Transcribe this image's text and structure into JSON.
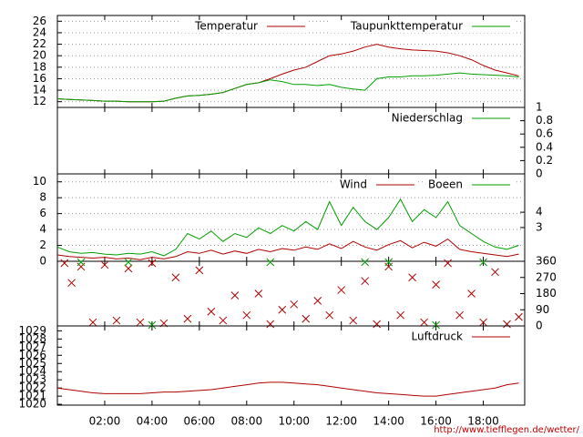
{
  "chart_data": [
    {
      "type": "line",
      "x": [
        0,
        0.5,
        1,
        1.5,
        2,
        2.5,
        3,
        3.5,
        4,
        4.5,
        5,
        5.5,
        6,
        6.5,
        7,
        7.5,
        8,
        8.5,
        9,
        9.5,
        10,
        10.5,
        11,
        11.5,
        12,
        12.5,
        13,
        13.5,
        14,
        14.5,
        15,
        15.5,
        16,
        16.5,
        17,
        17.5,
        18,
        18.5,
        19,
        19.5
      ],
      "series": [
        {
          "name": "Temperatur",
          "color": "#b00000",
          "values": [
            12.5,
            12.4,
            12.3,
            12.2,
            12.1,
            12.1,
            12.0,
            12.0,
            12.0,
            12.1,
            12.6,
            13.0,
            13.1,
            13.3,
            13.6,
            14.3,
            15.0,
            15.3,
            16.0,
            16.8,
            17.5,
            18.0,
            19.0,
            20.0,
            20.3,
            20.8,
            21.5,
            22.0,
            21.5,
            21.2,
            21.0,
            20.9,
            20.8,
            20.5,
            20.0,
            19.3,
            18.3,
            17.5,
            17.0,
            16.5
          ]
        },
        {
          "name": "Taupunkttemperatur",
          "color": "#00a000",
          "values": [
            12.5,
            12.4,
            12.3,
            12.2,
            12.1,
            12.1,
            12.0,
            12.0,
            12.0,
            12.1,
            12.6,
            13.0,
            13.1,
            13.3,
            13.6,
            14.3,
            15.0,
            15.3,
            15.8,
            15.5,
            15.0,
            15.0,
            14.8,
            15.0,
            14.5,
            14.2,
            14.0,
            16.0,
            16.3,
            16.3,
            16.5,
            16.5,
            16.6,
            16.8,
            17.0,
            16.8,
            16.7,
            16.6,
            16.5,
            16.3
          ]
        }
      ],
      "xlim": [
        0,
        19.75
      ],
      "ylim": [
        11,
        27
      ],
      "yticks": [
        12,
        14,
        16,
        18,
        20,
        22,
        24,
        26
      ],
      "grid": true
    },
    {
      "type": "line",
      "x": [
        0,
        19.5
      ],
      "series": [
        {
          "name": "Niederschlag",
          "color": "#00a000",
          "axis": "y2",
          "values": [
            0,
            0
          ]
        }
      ],
      "xlim": [
        0,
        19.75
      ],
      "y2lim": [
        0,
        1
      ],
      "y2ticks": [
        0,
        0.2,
        0.4,
        0.6,
        0.8,
        1
      ],
      "grid": false
    },
    {
      "type": "line",
      "x": [
        0,
        0.5,
        1,
        1.5,
        2,
        2.5,
        3,
        3.5,
        4,
        4.5,
        5,
        5.5,
        6,
        6.5,
        7,
        7.5,
        8,
        8.5,
        9,
        9.5,
        10,
        10.5,
        11,
        11.5,
        12,
        12.5,
        13,
        13.5,
        14,
        14.5,
        15,
        15.5,
        16,
        16.5,
        17,
        17.5,
        18,
        18.5,
        19,
        19.5
      ],
      "series": [
        {
          "name": "Wind",
          "color": "#b00000",
          "values": [
            0.8,
            0.6,
            0.5,
            0.4,
            0.5,
            0.3,
            0.4,
            0.2,
            0.5,
            0.3,
            0.6,
            1.2,
            1.0,
            1.4,
            0.9,
            1.3,
            1.0,
            1.5,
            1.2,
            1.6,
            1.4,
            1.8,
            1.5,
            2.2,
            1.6,
            2.5,
            1.8,
            1.4,
            2.1,
            2.6,
            1.7,
            2.4,
            1.9,
            2.8,
            1.5,
            1.2,
            1.0,
            0.8,
            0.6,
            0.9
          ]
        },
        {
          "name": "Boeen",
          "color": "#00a000",
          "values": [
            1.8,
            1.2,
            1.0,
            1.1,
            0.9,
            0.8,
            1.0,
            0.9,
            1.2,
            0.7,
            1.5,
            3.5,
            2.8,
            3.8,
            2.5,
            3.5,
            3.0,
            4.2,
            3.5,
            4.5,
            3.8,
            5.0,
            4.0,
            7.5,
            4.5,
            6.8,
            5.0,
            4.0,
            5.5,
            7.8,
            5.0,
            6.5,
            5.5,
            7.5,
            4.5,
            3.5,
            2.5,
            1.8,
            1.5,
            2.0
          ]
        }
      ],
      "xlim": [
        0,
        19.75
      ],
      "ylim": [
        0,
        11
      ],
      "yticks": [
        0,
        2,
        4,
        6,
        8,
        10
      ],
      "y2lim": [
        0.8,
        6.5
      ],
      "y2ticks": [
        3,
        4
      ],
      "grid": true
    },
    {
      "type": "scatter",
      "series": [
        {
          "color": "#b00000",
          "axis": "y2",
          "x": [
            0.3,
            0.6,
            1,
            1.5,
            2,
            2.5,
            3,
            3.5,
            4,
            4.5,
            5,
            5.5,
            6,
            6.5,
            7,
            7.5,
            8,
            8.5,
            9,
            9.5,
            10,
            10.5,
            11,
            11.5,
            12,
            12.5,
            13,
            13.5,
            14,
            14.5,
            15,
            15.5,
            16,
            16.5,
            17,
            17.5,
            18,
            18.5,
            19,
            19.5
          ],
          "values": [
            350,
            240,
            330,
            20,
            340,
            30,
            320,
            20,
            350,
            15,
            270,
            40,
            310,
            80,
            30,
            170,
            60,
            180,
            10,
            90,
            120,
            40,
            140,
            60,
            200,
            30,
            250,
            10,
            330,
            60,
            270,
            20,
            230,
            350,
            60,
            180,
            20,
            300,
            10,
            50
          ]
        },
        {
          "color": "#00a000",
          "axis": "y2",
          "x": [
            1,
            3,
            4,
            9,
            13,
            14,
            16,
            18
          ],
          "values": [
            355,
            355,
            5,
            355,
            355,
            355,
            5,
            355
          ]
        }
      ],
      "xlim": [
        0,
        19.75
      ],
      "y2lim": [
        0,
        360
      ],
      "y2ticks": [
        0,
        90,
        180,
        270,
        360
      ],
      "grid": false
    },
    {
      "type": "line",
      "x": [
        0,
        0.5,
        1,
        1.5,
        2,
        2.5,
        3,
        3.5,
        4,
        4.5,
        5,
        5.5,
        6,
        6.5,
        7,
        7.5,
        8,
        8.5,
        9,
        9.5,
        10,
        10.5,
        11,
        11.5,
        12,
        12.5,
        13,
        13.5,
        14,
        14.5,
        15,
        15.5,
        16,
        16.5,
        17,
        17.5,
        18,
        18.5,
        19,
        19.5
      ],
      "series": [
        {
          "name": "Luftdruck",
          "color": "#b00000",
          "values": [
            1022.0,
            1021.8,
            1021.6,
            1021.4,
            1021.3,
            1021.3,
            1021.3,
            1021.3,
            1021.4,
            1021.5,
            1021.5,
            1021.6,
            1021.7,
            1021.8,
            1022.0,
            1022.2,
            1022.4,
            1022.6,
            1022.7,
            1022.7,
            1022.6,
            1022.5,
            1022.4,
            1022.2,
            1022.0,
            1021.8,
            1021.6,
            1021.4,
            1021.3,
            1021.2,
            1021.1,
            1021.0,
            1021.0,
            1021.2,
            1021.4,
            1021.6,
            1021.8,
            1022.0,
            1022.4,
            1022.6
          ]
        }
      ],
      "xlim": [
        0,
        19.75
      ],
      "ylim": [
        1019.9,
        1029.6
      ],
      "yticks": [
        1020,
        1021,
        1022,
        1023,
        1024,
        1025,
        1026,
        1027,
        1028,
        1029
      ],
      "grid": false,
      "xticks": [
        {
          "value": 2,
          "label": "02:00"
        },
        {
          "value": 4,
          "label": "04:00"
        },
        {
          "value": 6,
          "label": "06:00"
        },
        {
          "value": 8,
          "label": "08:00"
        },
        {
          "value": 10,
          "label": "10:00"
        },
        {
          "value": 12,
          "label": "12:00"
        },
        {
          "value": 14,
          "label": "14:00"
        },
        {
          "value": 16,
          "label": "16:00"
        },
        {
          "value": 18,
          "label": "18:00"
        }
      ],
      "source": "http://www.tiefflegen.de/wetter/"
    }
  ]
}
